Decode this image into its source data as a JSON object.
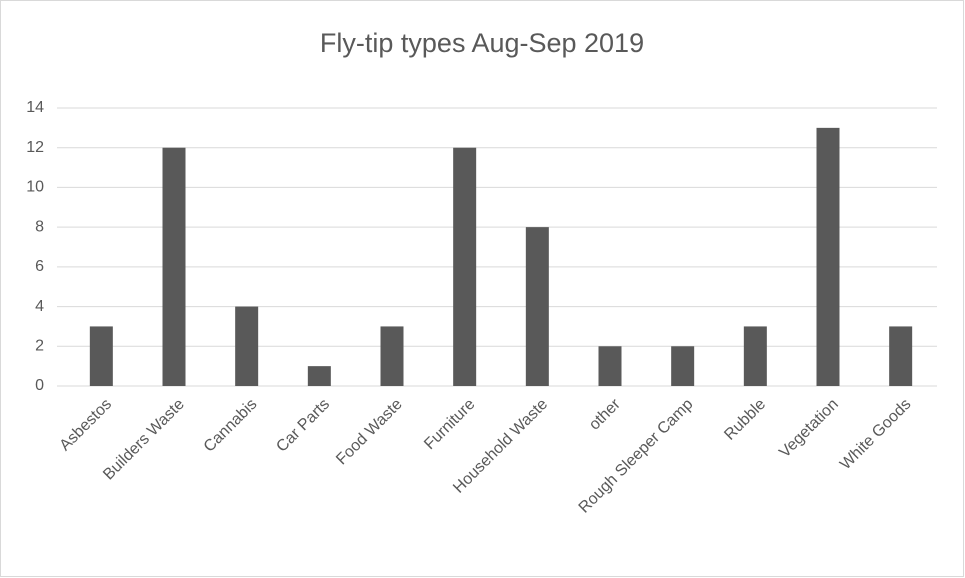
{
  "chart_data": {
    "type": "bar",
    "title": "Fly-tip types Aug-Sep 2019",
    "categories": [
      "Asbestos",
      "Builders Waste",
      "Cannabis",
      "Car Parts",
      "Food Waste",
      "Furniture",
      "Household Waste",
      "other",
      "Rough Sleeper Camp",
      "Rubble",
      "Vegetation",
      "White Goods"
    ],
    "values": [
      3,
      12,
      4,
      1,
      3,
      12,
      8,
      2,
      2,
      3,
      13,
      3
    ],
    "color": "#595959",
    "ylim": [
      0,
      14
    ],
    "yticks": [
      0,
      2,
      4,
      6,
      8,
      10,
      12,
      14
    ],
    "grid": true
  }
}
